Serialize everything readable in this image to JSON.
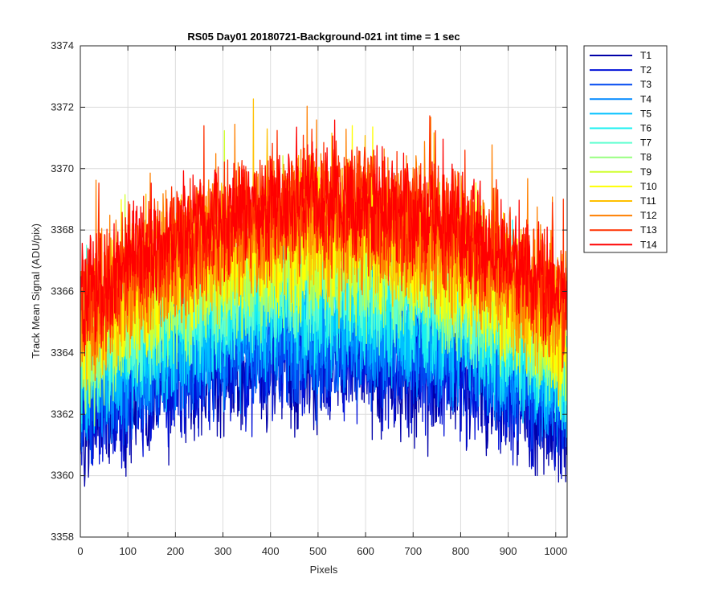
{
  "chart_data": {
    "type": "line",
    "title": "RS05 Day01 20180721-Background-021 int time = 1 sec",
    "xlabel": "Pixels",
    "ylabel": "Track Mean Signal (ADU/pix)",
    "xlim": [
      0,
      1024
    ],
    "ylim": [
      3358,
      3374
    ],
    "xticks": [
      0,
      100,
      200,
      300,
      400,
      500,
      600,
      700,
      800,
      900,
      1000
    ],
    "yticks": [
      3358,
      3360,
      3362,
      3364,
      3366,
      3368,
      3370,
      3372,
      3374
    ],
    "grid": true,
    "legend_position": "outside-right",
    "num_points": 1024,
    "series": [
      {
        "name": "T1",
        "color": "#0000a8",
        "base_edge": 3361.8,
        "base_center": 3363.7,
        "noise": 2.6
      },
      {
        "name": "T2",
        "color": "#0010d8",
        "base_edge": 3362.0,
        "base_center": 3363.9,
        "noise": 2.5
      },
      {
        "name": "T3",
        "color": "#0048f0",
        "base_edge": 3362.4,
        "base_center": 3364.3,
        "noise": 2.4
      },
      {
        "name": "T4",
        "color": "#0088ff",
        "base_edge": 3362.8,
        "base_center": 3364.8,
        "noise": 2.4
      },
      {
        "name": "T5",
        "color": "#00c0ff",
        "base_edge": 3363.1,
        "base_center": 3365.3,
        "noise": 2.4
      },
      {
        "name": "T6",
        "color": "#18f0f0",
        "base_edge": 3363.4,
        "base_center": 3365.8,
        "noise": 2.4
      },
      {
        "name": "T7",
        "color": "#60ffd0",
        "base_edge": 3363.7,
        "base_center": 3366.3,
        "noise": 2.4
      },
      {
        "name": "T8",
        "color": "#98ff80",
        "base_edge": 3364.0,
        "base_center": 3366.8,
        "noise": 2.5
      },
      {
        "name": "T9",
        "color": "#d0ff30",
        "base_edge": 3364.3,
        "base_center": 3367.3,
        "noise": 2.5
      },
      {
        "name": "T10",
        "color": "#ffff00",
        "base_edge": 3364.6,
        "base_center": 3367.7,
        "noise": 2.6
      },
      {
        "name": "T11",
        "color": "#ffc000",
        "base_edge": 3364.9,
        "base_center": 3368.0,
        "noise": 2.6
      },
      {
        "name": "T12",
        "color": "#ff8000",
        "base_edge": 3365.2,
        "base_center": 3368.4,
        "noise": 2.6
      },
      {
        "name": "T13",
        "color": "#ff3000",
        "base_edge": 3365.5,
        "base_center": 3368.7,
        "noise": 2.4
      },
      {
        "name": "T14",
        "color": "#ff0000",
        "base_edge": 3365.7,
        "base_center": 3369.0,
        "noise": 2.2
      }
    ]
  }
}
